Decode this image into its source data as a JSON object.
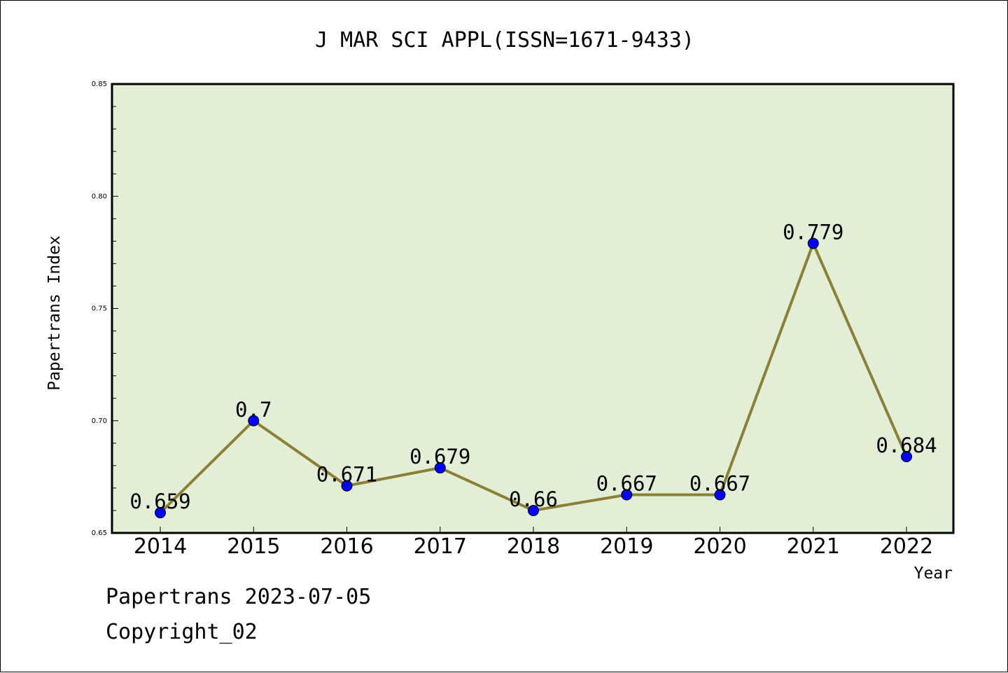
{
  "chart_data": {
    "type": "line",
    "title": "J MAR SCI APPL(ISSN=1671-9433)",
    "xlabel": "Year",
    "ylabel": "Papertrans Index",
    "categories": [
      "2014",
      "2015",
      "2016",
      "2017",
      "2018",
      "2019",
      "2020",
      "2021",
      "2022"
    ],
    "values": [
      0.659,
      0.7,
      0.671,
      0.679,
      0.66,
      0.667,
      0.667,
      0.779,
      0.684
    ],
    "data_labels": [
      "0.659",
      "0.7",
      "0.671",
      "0.679",
      "0.66",
      "0.667",
      "0.667",
      "0.779",
      "0.684"
    ],
    "ylim": [
      0.65,
      0.85
    ],
    "yticks": [
      "0.65",
      "0.70",
      "0.75",
      "0.80",
      "0.85"
    ],
    "grid": false,
    "colors": {
      "plot_background": "#e2efd6",
      "line": "#8b8035",
      "marker": "#0000ff"
    }
  },
  "footer": {
    "line1": "Papertrans 2023-07-05",
    "line2": "Copyright_02"
  }
}
